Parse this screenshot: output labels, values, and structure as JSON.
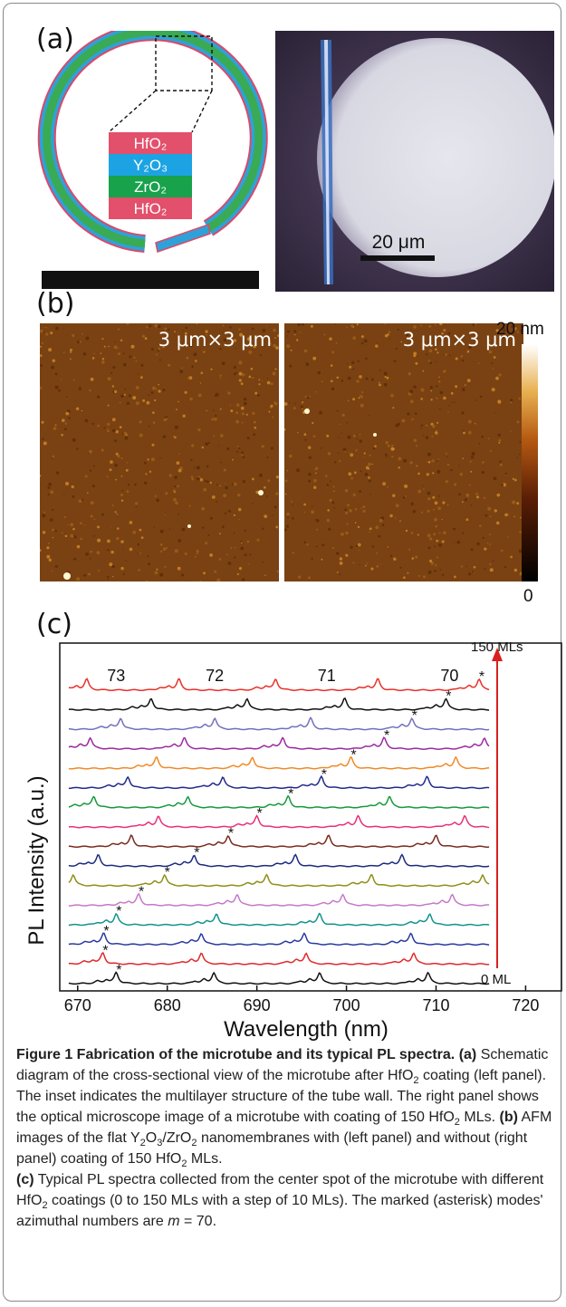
{
  "panels": {
    "a": "(a)",
    "b": "(b)",
    "c": "(c)"
  },
  "panel_a": {
    "layers": [
      "HfO₂",
      "Y₂O₃",
      "ZrO₂",
      "HfO₂"
    ],
    "layer_colors": [
      "#e2506c",
      "#1ca3e3",
      "#17a24b",
      "#e2506c"
    ],
    "scale_bar_label": "20 μm"
  },
  "panel_b": {
    "left_label": "3 μm×3 μm",
    "right_label": "3 μm×3 μm",
    "colorbar_max": "20 nm",
    "colorbar_min": "0"
  },
  "chart_data": {
    "type": "line",
    "ylabel": "PL Intensity (a.u.)",
    "xlabel": "Wavelength (nm)",
    "xlim": [
      668,
      724
    ],
    "x_ticks": [
      670,
      680,
      690,
      700,
      710,
      720
    ],
    "mode_labels": [
      {
        "text": "73",
        "x": 674.3
      },
      {
        "text": "72",
        "x": 685.3
      },
      {
        "text": "71",
        "x": 697.8
      },
      {
        "text": "70",
        "x": 711.5
      }
    ],
    "arrow_top_label": "150 MLs",
    "arrow_bottom_label": "0 ML",
    "series": [
      {
        "color": "#e8322a",
        "peaks": [
          671.0,
          681.3,
          692.1,
          703.5,
          714.8
        ],
        "star": 714.8
      },
      {
        "color": "#111111",
        "peaks": [
          678.2,
          688.9,
          699.8,
          711.1
        ],
        "star": 711.1
      },
      {
        "color": "#7070c0",
        "peaks": [
          674.8,
          685.3,
          696.0,
          707.3
        ],
        "star": 707.3
      },
      {
        "color": "#9a2aa0",
        "peaks": [
          671.4,
          681.9,
          692.9,
          704.2,
          715.4
        ],
        "star": 704.2
      },
      {
        "color": "#f08a28",
        "peaks": [
          678.8,
          689.5,
          700.5,
          712.2
        ],
        "star": 700.5
      },
      {
        "color": "#222a8c",
        "peaks": [
          675.6,
          686.2,
          697.2,
          709.0
        ],
        "star": 697.2
      },
      {
        "color": "#159a3c",
        "peaks": [
          671.8,
          682.3,
          693.5,
          704.8
        ],
        "star": 693.5
      },
      {
        "color": "#e8307a",
        "peaks": [
          679.0,
          690.0,
          701.3,
          713.2
        ],
        "star": 690.0
      },
      {
        "color": "#7a2a1e",
        "peaks": [
          676.0,
          686.8,
          698.0,
          710.0
        ],
        "star": 686.8
      },
      {
        "color": "#1c2a80",
        "peaks": [
          672.3,
          683.0,
          694.3,
          706.2
        ],
        "star": 683.0
      },
      {
        "color": "#8f8f18",
        "peaks": [
          669.5,
          679.7,
          691.1,
          702.8,
          715.2
        ],
        "star": 679.7
      },
      {
        "color": "#c47ac8",
        "peaks": [
          676.8,
          687.8,
          699.6,
          711.8
        ],
        "star": 676.8
      },
      {
        "color": "#12948c",
        "peaks": [
          674.3,
          685.5,
          697.0,
          709.3
        ],
        "star": 674.3
      },
      {
        "color": "#2a3aa0",
        "peaks": [
          672.9,
          683.8,
          695.3,
          707.2
        ],
        "star": 672.9
      },
      {
        "color": "#e02a2a",
        "peaks": [
          672.8,
          683.8,
          695.5,
          707.5
        ],
        "star": 672.8
      },
      {
        "color": "#111111",
        "peaks": [
          674.3,
          685.2,
          697.0,
          709.1
        ],
        "star": 674.3
      }
    ]
  },
  "caption": {
    "title": "Figure 1 Fabrication of the microtube and its typical PL spectra.",
    "a_tag": "(a)",
    "a_text_1": "Schematic diagram of the cross-sectional view of the microtube after HfO",
    "a_text_2": "coating (left panel). The inset indicates the multilayer structure of the tube wall. The right panel shows the optical microscope image of a microtube with coating of 150 HfO",
    "a_text_3": "MLs.",
    "b_tag": "(b)",
    "b_text_1": "AFM images of the flat Y",
    "b_text_2": "O",
    "b_text_3": "/ZrO",
    "b_text_4": "nanomembranes with (left panel) and without (right panel) coating of 150 HfO",
    "b_text_5": "MLs.",
    "c_tag": "(c)",
    "c_text_1": "Typical PL spectra collected from the center spot of the microtube with different HfO",
    "c_text_2": "coatings (0 to 150 MLs with a step of 10 MLs). The marked (asterisk) modes' azimuthal numbers are",
    "c_text_3": "m",
    "c_text_4": "= 70.",
    "sub2": "2",
    "sub3": "3"
  }
}
